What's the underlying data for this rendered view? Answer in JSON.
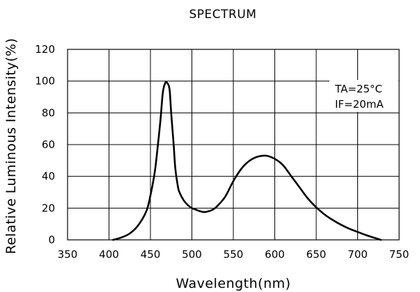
{
  "chart_data": {
    "type": "line",
    "title": "SPECTRUM",
    "xlabel": "Wavelength(nm)",
    "ylabel": "Relative Luminous Intensity(%)",
    "xlim": [
      350,
      750
    ],
    "ylim": [
      0,
      120
    ],
    "xticks": [
      350,
      400,
      450,
      500,
      550,
      600,
      650,
      700,
      750
    ],
    "yticks": [
      0,
      20,
      40,
      60,
      80,
      100,
      120
    ],
    "grid": true,
    "annotations": [
      "TA=25°C",
      "IF=20mA"
    ],
    "series": [
      {
        "x": [
          405,
          415,
          425,
          435,
          445,
          450,
          455,
          458,
          462,
          465,
          468,
          470,
          473,
          475,
          478,
          480,
          483,
          485,
          490,
          495,
          500,
          505,
          510,
          515,
          520,
          525,
          530,
          540,
          550,
          560,
          570,
          580,
          590,
          600,
          610,
          620,
          630,
          640,
          650,
          660,
          670,
          680,
          690,
          700,
          710,
          720,
          728
        ],
        "y": [
          0,
          1.5,
          4,
          9,
          18,
          28,
          42,
          55,
          75,
          93,
          99,
          99,
          95,
          80,
          60,
          45,
          34,
          30,
          25,
          22,
          20,
          19,
          18,
          17.5,
          18,
          19,
          21,
          27,
          37,
          45,
          50,
          52.5,
          53,
          51,
          47,
          40,
          33,
          26,
          20.5,
          16,
          12.5,
          9.5,
          7,
          5,
          3,
          1.3,
          0
        ]
      }
    ]
  }
}
